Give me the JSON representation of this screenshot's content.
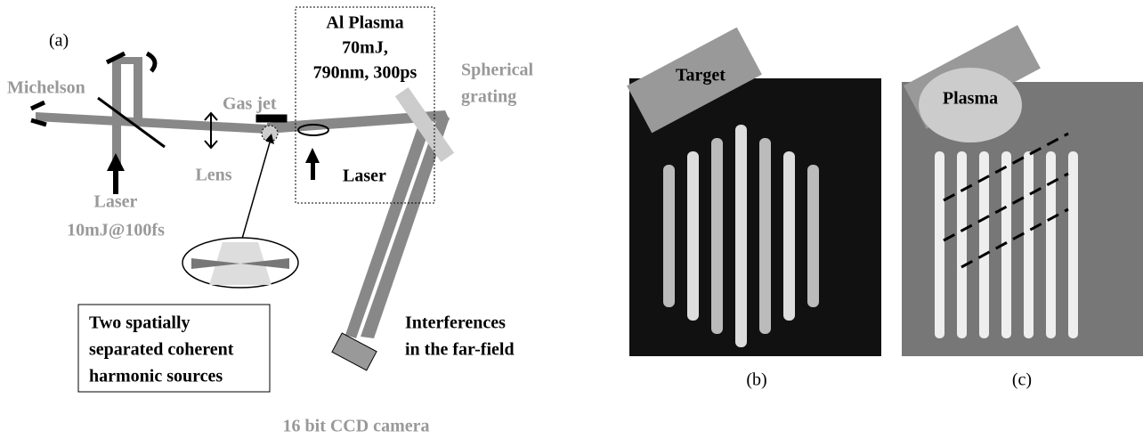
{
  "panel_a": {
    "label": "(a)",
    "michelson": "Michelson",
    "laser_source": {
      "name": "Laser",
      "spec": "10mJ@100fs"
    },
    "lens": "Lens",
    "gas_jet": "Gas jet",
    "plasma_box": [
      "Al Plasma",
      "70mJ,",
      "790nm, 300ps"
    ],
    "plasma_laser": "Laser",
    "grating": [
      "Spherical",
      "grating"
    ],
    "sources_box": [
      "Two spatially",
      "separated coherent",
      "harmonic sources"
    ],
    "interferences": [
      "Interferences",
      "in the far-field"
    ],
    "camera": "16 bit CCD camera"
  },
  "panel_b": {
    "label": "(b)",
    "target": "Target"
  },
  "panel_c": {
    "label": "(c)",
    "plasma": "Plasma"
  }
}
